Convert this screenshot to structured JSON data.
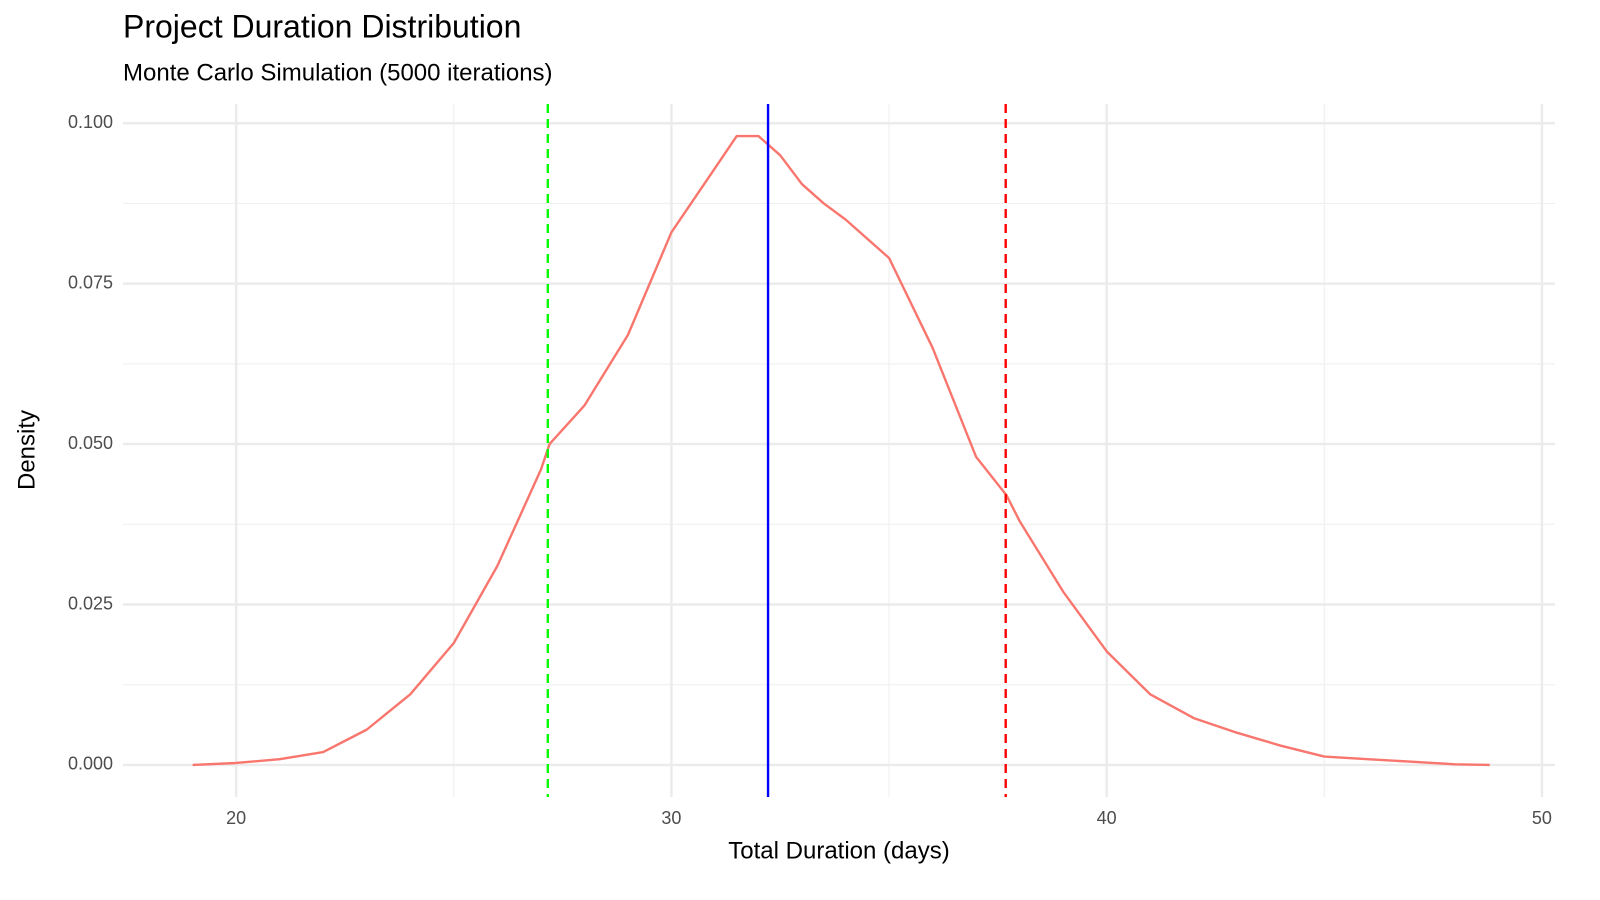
{
  "chart_data": {
    "type": "line",
    "title": "Project Duration Distribution",
    "subtitle": "Monte Carlo Simulation (5000 iterations)",
    "x_label": "Total Duration (days)",
    "y_label": "Density",
    "x": [
      19,
      20,
      21,
      22,
      23,
      24,
      25,
      26,
      27,
      27.2,
      28,
      29,
      30,
      31,
      31.5,
      32,
      32.5,
      33,
      33.5,
      34,
      35,
      36,
      37,
      37.7,
      38,
      39,
      40,
      41,
      42,
      43,
      44,
      45,
      46,
      47,
      48,
      48.8
    ],
    "values": [
      0,
      0.0003,
      0.0009,
      0.002,
      0.0055,
      0.011,
      0.019,
      0.031,
      0.046,
      0.05,
      0.056,
      0.067,
      0.083,
      0.093,
      0.098,
      0.098,
      0.095,
      0.0905,
      0.0875,
      0.085,
      0.079,
      0.065,
      0.048,
      0.042,
      0.038,
      0.027,
      0.0177,
      0.011,
      0.0073,
      0.005,
      0.003,
      0.0013,
      0.0009,
      0.0005,
      0.0001,
      0
    ],
    "color": "#F8766D",
    "reference_lines": [
      {
        "x": 27.16,
        "color": "#00ff00",
        "dashed": true
      },
      {
        "x": 32.22,
        "color": "#0000ff",
        "dashed": false
      },
      {
        "x": 37.68,
        "color": "#ff0000",
        "dashed": true
      }
    ],
    "xlim": [
      17.4,
      50.3
    ],
    "ylim": [
      -0.005,
      0.103
    ],
    "xticks": [
      20,
      30,
      40,
      50
    ],
    "yticks": [
      {
        "value": 0,
        "label": "0.000"
      },
      {
        "value": 0.025,
        "label": "0.025"
      },
      {
        "value": 0.05,
        "label": "0.050"
      },
      {
        "value": 0.075,
        "label": "0.075"
      },
      {
        "value": 0.1,
        "label": "0.100"
      }
    ],
    "x_minor_grid": [
      25,
      35,
      45
    ],
    "y_minor_grid": [
      0.0125,
      0.0375,
      0.0625,
      0.0875
    ],
    "grid": true
  }
}
